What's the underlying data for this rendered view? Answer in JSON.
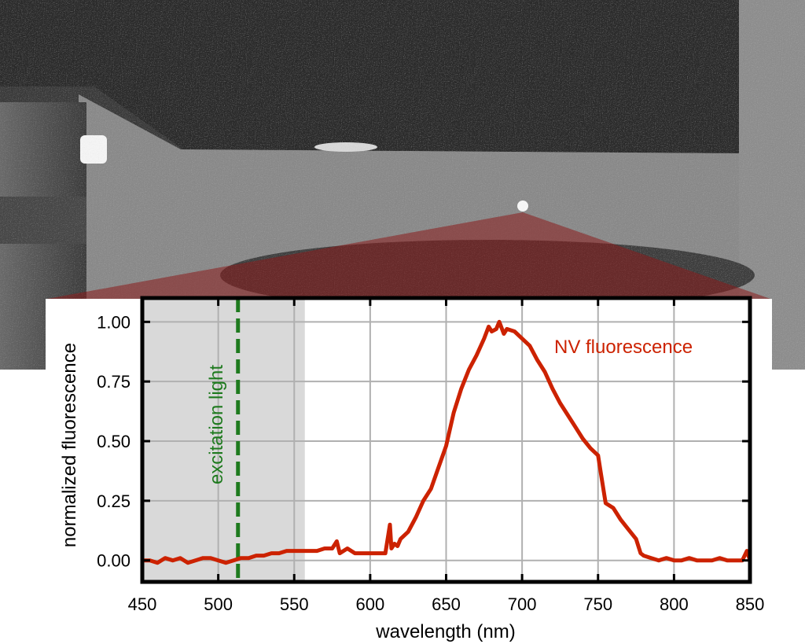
{
  "chart_data": {
    "type": "line",
    "title": "",
    "xlabel": "wavelength (nm)",
    "ylabel": "normalized fluorescence",
    "xlim": [
      450,
      850
    ],
    "ylim": [
      -0.09,
      1.1
    ],
    "x_ticks": [
      450,
      500,
      550,
      600,
      650,
      700,
      750,
      800,
      850
    ],
    "y_ticks": [
      0.0,
      0.25,
      0.5,
      0.75,
      1.0
    ],
    "y_tick_labels": [
      "0.00",
      "0.25",
      "0.50",
      "0.75",
      "1.00"
    ],
    "grid": true,
    "shaded_region": {
      "x_start": 450,
      "x_end": 557,
      "color": "#d9d9d9"
    },
    "excitation": {
      "x": 513,
      "label": "excitation light",
      "color": "#1e7a1e"
    },
    "series": [
      {
        "name": "NV fluorescence",
        "color": "#cc2200",
        "x": [
          450,
          455,
          460,
          465,
          470,
          475,
          480,
          485,
          490,
          495,
          500,
          505,
          510,
          515,
          520,
          525,
          530,
          535,
          540,
          545,
          550,
          555,
          560,
          565,
          570,
          575,
          578,
          580,
          585,
          590,
          595,
          600,
          605,
          610,
          613,
          614,
          616,
          618,
          620,
          625,
          630,
          635,
          640,
          645,
          650,
          655,
          660,
          665,
          670,
          675,
          678,
          680,
          683,
          685,
          688,
          690,
          695,
          700,
          705,
          710,
          715,
          720,
          725,
          730,
          735,
          740,
          745,
          750,
          752,
          755,
          760,
          765,
          770,
          775,
          778,
          780,
          785,
          790,
          795,
          800,
          805,
          810,
          815,
          820,
          825,
          830,
          835,
          840,
          845,
          848,
          850
        ],
        "y": [
          0.0,
          0.0,
          -0.01,
          0.01,
          0.0,
          0.01,
          -0.01,
          0.0,
          0.01,
          0.01,
          0.0,
          -0.01,
          0.0,
          0.01,
          0.01,
          0.02,
          0.02,
          0.03,
          0.03,
          0.04,
          0.04,
          0.04,
          0.04,
          0.04,
          0.05,
          0.05,
          0.08,
          0.03,
          0.05,
          0.03,
          0.03,
          0.03,
          0.03,
          0.03,
          0.15,
          0.05,
          0.07,
          0.06,
          0.09,
          0.12,
          0.18,
          0.25,
          0.3,
          0.39,
          0.48,
          0.62,
          0.72,
          0.8,
          0.86,
          0.93,
          0.98,
          0.96,
          0.97,
          1.0,
          0.95,
          0.97,
          0.96,
          0.93,
          0.9,
          0.84,
          0.79,
          0.72,
          0.66,
          0.61,
          0.56,
          0.51,
          0.47,
          0.44,
          0.36,
          0.24,
          0.22,
          0.17,
          0.13,
          0.09,
          0.03,
          0.02,
          0.01,
          0.0,
          0.01,
          0.0,
          0.0,
          0.01,
          0.0,
          0.0,
          0.0,
          0.01,
          0.0,
          0.0,
          0.0,
          0.04,
          0.0
        ]
      }
    ]
  }
}
